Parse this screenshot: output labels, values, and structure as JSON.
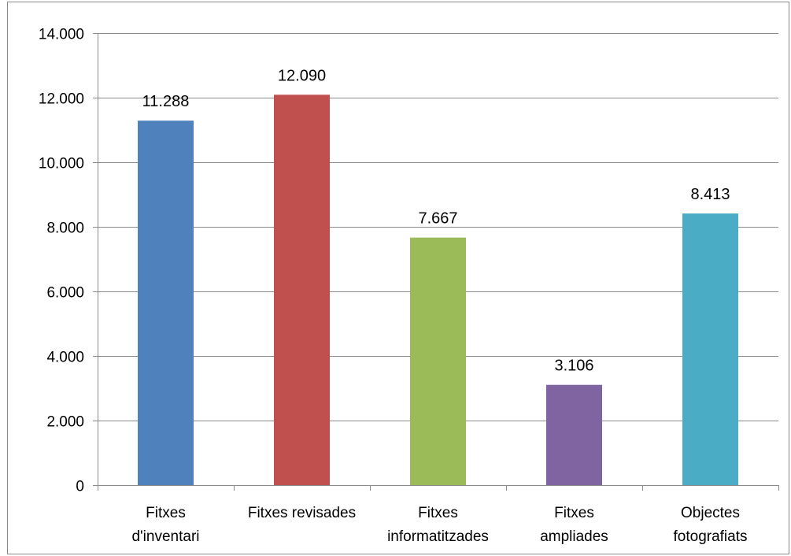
{
  "chart_data": {
    "type": "bar",
    "categories": [
      [
        "Fitxes",
        "d'inventari"
      ],
      [
        "Fitxes revisades"
      ],
      [
        "Fitxes",
        "informatitzades"
      ],
      [
        "Fitxes",
        "ampliades"
      ],
      [
        "Objectes",
        "fotografiats"
      ]
    ],
    "values": [
      11288,
      12090,
      7667,
      3106,
      8413
    ],
    "data_labels": [
      "11.288",
      "12.090",
      "7.667",
      "3.106",
      "8.413"
    ],
    "colors": [
      "#4f81bd",
      "#c0504d",
      "#9bbb59",
      "#8064a2",
      "#4bacc6"
    ],
    "ylim": [
      0,
      14000
    ],
    "yticks": [
      0,
      2000,
      4000,
      6000,
      8000,
      10000,
      12000,
      14000
    ],
    "ytick_labels": [
      "0",
      "2.000",
      "4.000",
      "6.000",
      "8.000",
      "10.000",
      "12.000",
      "14.000"
    ],
    "grid": true,
    "legend": "none",
    "gridline_color": "#8c8c8c",
    "axis_color": "#8c8c8c",
    "title": "",
    "xlabel": "",
    "ylabel": ""
  }
}
